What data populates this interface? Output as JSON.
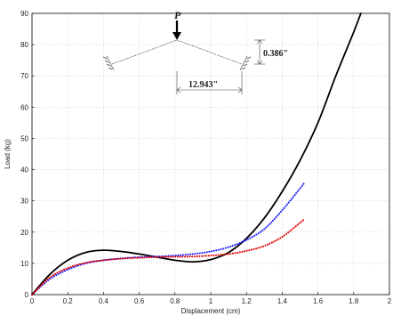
{
  "chart_data": {
    "type": "line",
    "xlabel": "Displacement (cm)",
    "ylabel": "Load (kg)",
    "xlim": [
      0,
      2
    ],
    "ylim": [
      0,
      90
    ],
    "x_ticks": [
      "0",
      "0.2",
      "0.4",
      "0.6",
      "0.8",
      "1",
      "1.2",
      "1.4",
      "1.6",
      "1.8",
      "2"
    ],
    "y_ticks": [
      "0",
      "10",
      "20",
      "30",
      "40",
      "50",
      "60",
      "70",
      "80",
      "90"
    ],
    "grid": true,
    "series": [
      {
        "color": "#000000",
        "style": "solid",
        "x": [
          0,
          0.1,
          0.2,
          0.3,
          0.4,
          0.5,
          0.6,
          0.7,
          0.8,
          0.9,
          1.0,
          1.1,
          1.2,
          1.3,
          1.4,
          1.5,
          1.6,
          1.7,
          1.8,
          1.84
        ],
        "y": [
          0,
          6.5,
          11,
          13.5,
          14.2,
          13.8,
          13,
          12,
          11,
          10.5,
          11.2,
          13.5,
          18,
          24.5,
          33,
          43,
          55,
          70,
          84,
          90
        ]
      },
      {
        "color": "#1a1aff",
        "style": "dotted",
        "x": [
          0,
          0.1,
          0.2,
          0.3,
          0.4,
          0.5,
          0.6,
          0.7,
          0.8,
          0.9,
          1.0,
          1.1,
          1.2,
          1.3,
          1.4,
          1.5,
          1.52
        ],
        "y": [
          0,
          5,
          8,
          10,
          11,
          11.6,
          12,
          12.2,
          12.5,
          13,
          13.8,
          15.2,
          17.5,
          21,
          27,
          34,
          35.5
        ]
      },
      {
        "color": "#e00000",
        "style": "dotted",
        "x": [
          0,
          0.1,
          0.2,
          0.3,
          0.4,
          0.5,
          0.6,
          0.7,
          0.8,
          0.9,
          1.0,
          1.1,
          1.2,
          1.3,
          1.4,
          1.5,
          1.52
        ],
        "y": [
          0,
          5.5,
          8.5,
          10.2,
          11,
          11.5,
          11.8,
          12,
          12.1,
          12.2,
          12.5,
          13,
          14,
          15.6,
          18.5,
          23,
          24
        ]
      }
    ],
    "annotation": {
      "load_symbol": "P",
      "height_label": "0.386\"",
      "span_label": "12.943\""
    }
  }
}
